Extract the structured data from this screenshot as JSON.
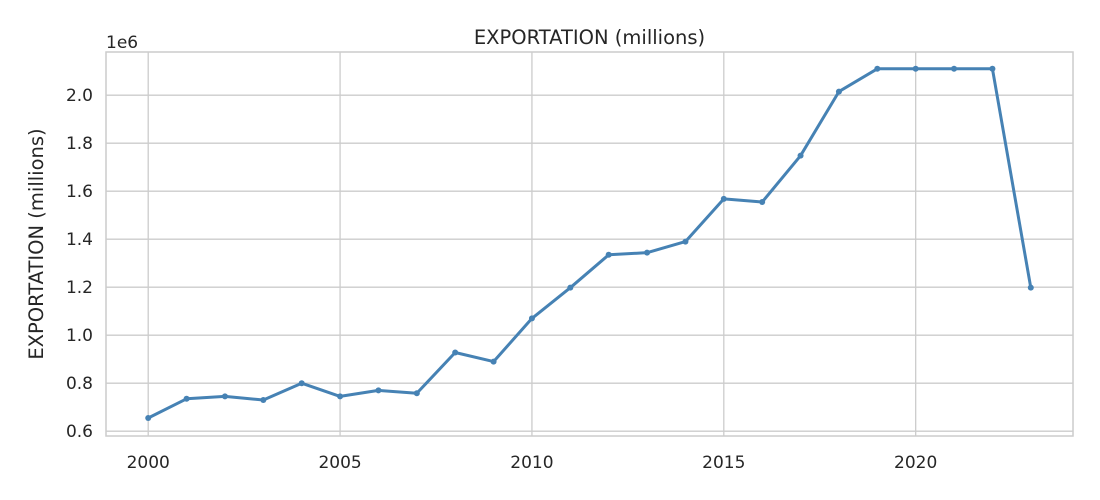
{
  "chart_data": {
    "type": "line",
    "title": "EXPORTATION (millions)",
    "xlabel": "",
    "ylabel": "EXPORTATION (millions)",
    "y_offset_label": "1e6",
    "xlim": [
      1998.9,
      2024.1
    ],
    "ylim": [
      0.58,
      2.18
    ],
    "xticks": [
      2000,
      2005,
      2010,
      2015,
      2020
    ],
    "yticks": [
      0.6,
      0.8,
      1.0,
      1.2,
      1.4,
      1.6,
      1.8,
      2.0
    ],
    "ytick_labels": [
      "0.6",
      "0.8",
      "1.0",
      "1.2",
      "1.4",
      "1.6",
      "1.8",
      "2.0"
    ],
    "grid": true,
    "colors": {
      "line": "#4682b4",
      "grid": "#cccccc",
      "spine": "#cccccc"
    },
    "series": [
      {
        "x": [
          2000,
          2001,
          2002,
          2003,
          2004,
          2005,
          2006,
          2007,
          2008,
          2009,
          2010,
          2011,
          2012,
          2013,
          2014,
          2015,
          2016,
          2017,
          2018,
          2019,
          2020,
          2021,
          2022,
          2023
        ],
        "values": [
          0.655,
          0.735,
          0.745,
          0.73,
          0.8,
          0.745,
          0.77,
          0.758,
          0.928,
          0.89,
          1.07,
          1.198,
          1.335,
          1.344,
          1.39,
          1.568,
          1.555,
          1.748,
          2.015,
          2.11,
          2.11,
          2.11,
          2.11,
          1.198
        ]
      }
    ]
  }
}
